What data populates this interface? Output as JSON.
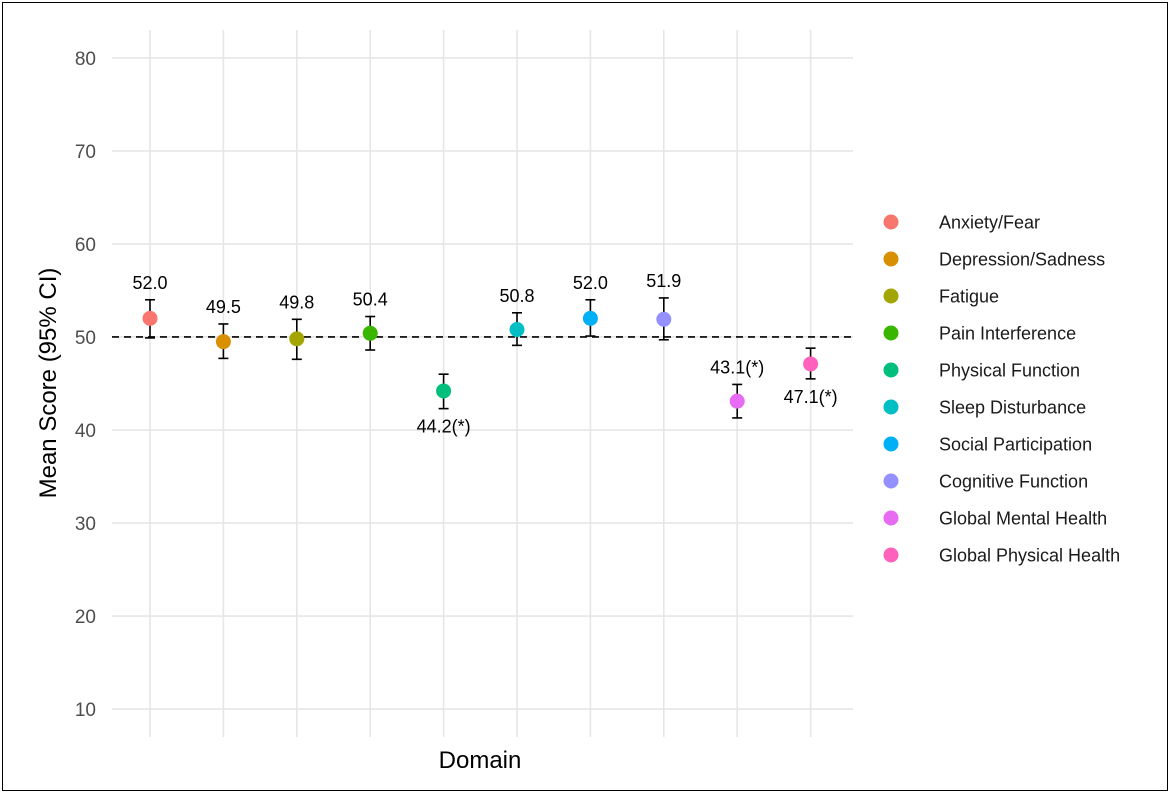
{
  "chart_data": {
    "type": "scatter",
    "title": "",
    "xlabel": "Domain",
    "ylabel": "Mean Score (95% CI)",
    "ylim": [
      7,
      83
    ],
    "y_ticks": [
      10,
      20,
      30,
      40,
      50,
      60,
      70,
      80
    ],
    "reference_line": {
      "y": 50,
      "style": "dashed"
    },
    "grid": true,
    "legend_position": "right",
    "series": [
      {
        "name": "Anxiety/Fear",
        "color": "#F8766D",
        "value": 52.0,
        "ci_low": 49.9,
        "ci_high": 54.0,
        "label": "52.0",
        "label_position": "above"
      },
      {
        "name": "Depression/Sadness",
        "color": "#D89000",
        "value": 49.5,
        "ci_low": 47.7,
        "ci_high": 51.4,
        "label": "49.5",
        "label_position": "above"
      },
      {
        "name": "Fatigue",
        "color": "#A3A500",
        "value": 49.8,
        "ci_low": 47.6,
        "ci_high": 51.9,
        "label": "49.8",
        "label_position": "above"
      },
      {
        "name": "Pain Interference",
        "color": "#39B600",
        "value": 50.4,
        "ci_low": 48.6,
        "ci_high": 52.2,
        "label": "50.4",
        "label_position": "above"
      },
      {
        "name": "Physical Function",
        "color": "#00BF7D",
        "value": 44.2,
        "ci_low": 42.3,
        "ci_high": 46.0,
        "label": "44.2(*)",
        "label_position": "below"
      },
      {
        "name": "Sleep Disturbance",
        "color": "#00BFC4",
        "value": 50.8,
        "ci_low": 49.1,
        "ci_high": 52.6,
        "label": "50.8",
        "label_position": "above"
      },
      {
        "name": "Social Participation",
        "color": "#00B0F6",
        "value": 52.0,
        "ci_low": 50.1,
        "ci_high": 54.0,
        "label": "52.0",
        "label_position": "above"
      },
      {
        "name": "Cognitive Function",
        "color": "#9590FF",
        "value": 51.9,
        "ci_low": 49.7,
        "ci_high": 54.2,
        "label": "51.9",
        "label_position": "above"
      },
      {
        "name": "Global Mental Health",
        "color": "#E76BF3",
        "value": 43.1,
        "ci_low": 41.3,
        "ci_high": 44.9,
        "label": "43.1(*)",
        "label_position": "above"
      },
      {
        "name": "Global Physical Health",
        "color": "#FF62BC",
        "value": 47.1,
        "ci_low": 45.5,
        "ci_high": 48.8,
        "label": "47.1(*)",
        "label_position": "below"
      }
    ]
  }
}
